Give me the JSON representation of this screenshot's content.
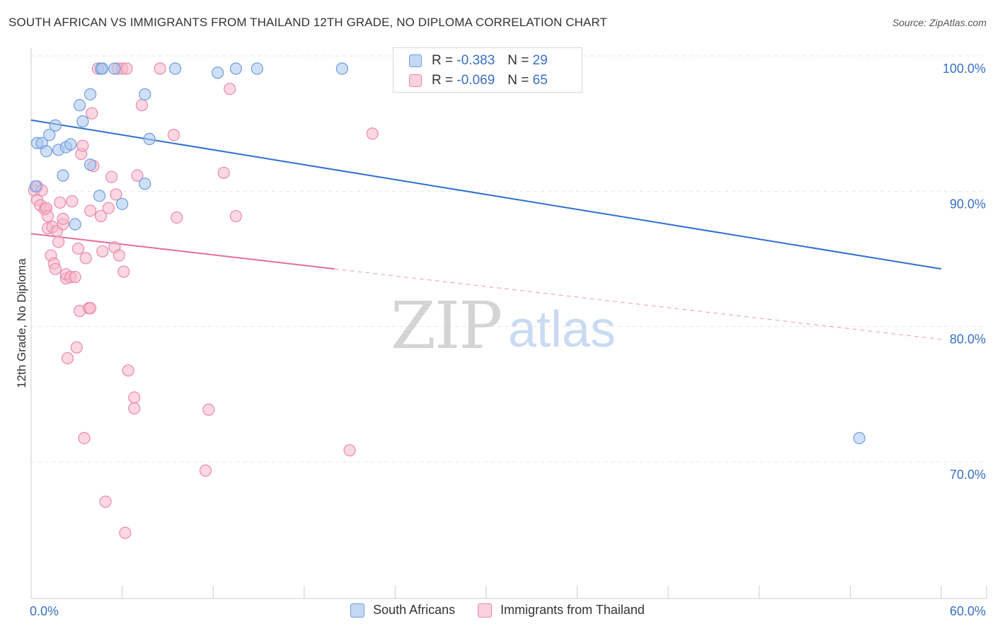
{
  "title": "SOUTH AFRICAN VS IMMIGRANTS FROM THAILAND 12TH GRADE, NO DIPLOMA CORRELATION CHART",
  "source": "Source: ZipAtlas.com",
  "watermark": {
    "zip": "ZIP",
    "atlas": "atlas"
  },
  "legend_stats": [
    {
      "r_label": "R =",
      "r_value": "-0.383",
      "n_label": "N =",
      "n_value": "29",
      "color": "#a8c6ef",
      "stroke": "#6f9be0"
    },
    {
      "r_label": "R =",
      "r_value": "-0.069",
      "n_label": "N =",
      "n_value": "65",
      "color": "#f7b7cb",
      "stroke": "#e98aa8"
    }
  ],
  "bottom_legend": [
    "South Africans",
    "Immigrants from Thailand"
  ],
  "chart_data": {
    "type": "scatter",
    "title": "SOUTH AFRICAN VS IMMIGRANTS FROM THAILAND 12TH GRADE, NO DIPLOMA CORRELATION CHART",
    "xlabel": "",
    "ylabel": "12th Grade, No Diploma",
    "xlim": [
      0,
      60
    ],
    "ylim": [
      60.5,
      101.5
    ],
    "x_tick_labels": [
      "0.0%",
      "60.0%"
    ],
    "y_ticks": [
      100,
      90,
      80,
      70
    ],
    "y_tick_labels": [
      "100.0%",
      "90.0%",
      "80.0%",
      "70.0%"
    ],
    "grid": true,
    "legend_position": "top-center",
    "series": [
      {
        "name": "South Africans",
        "color": "#6f9be0",
        "fill": "#a8c6ef",
        "line_color": "#2f6fd0",
        "trend": {
          "x": [
            0,
            60
          ],
          "y": [
            96.2,
            85.2
          ],
          "solid_to": 60
        },
        "points": [
          [
            0.3,
            91.3
          ],
          [
            0.4,
            94.5
          ],
          [
            0.7,
            94.5
          ],
          [
            1.0,
            93.9
          ],
          [
            1.2,
            95.1
          ],
          [
            1.6,
            95.8
          ],
          [
            1.8,
            94.0
          ],
          [
            2.1,
            92.1
          ],
          [
            2.3,
            94.2
          ],
          [
            2.6,
            94.4
          ],
          [
            2.9,
            88.5
          ],
          [
            3.2,
            97.3
          ],
          [
            3.4,
            96.1
          ],
          [
            3.9,
            98.1
          ],
          [
            3.9,
            92.9
          ],
          [
            4.5,
            90.6
          ],
          [
            4.6,
            100.0
          ],
          [
            4.7,
            100.0
          ],
          [
            5.5,
            100.0
          ],
          [
            6.0,
            90.0
          ],
          [
            7.5,
            98.1
          ],
          [
            7.5,
            91.5
          ],
          [
            7.8,
            94.8
          ],
          [
            9.5,
            100.0
          ],
          [
            12.3,
            99.7
          ],
          [
            13.5,
            100.0
          ],
          [
            14.9,
            100.0
          ],
          [
            20.5,
            100.0
          ],
          [
            54.6,
            72.7
          ]
        ]
      },
      {
        "name": "Immigrants from Thailand",
        "color": "#e98aa8",
        "fill": "#f7b7cb",
        "line_color": "#e4709a",
        "trend": {
          "x": [
            0,
            60
          ],
          "y": [
            87.8,
            80.0
          ],
          "solid_to": 20
        },
        "points": [
          [
            0.2,
            91.0
          ],
          [
            0.4,
            91.3
          ],
          [
            0.4,
            90.3
          ],
          [
            0.6,
            89.9
          ],
          [
            0.7,
            91.0
          ],
          [
            0.9,
            89.6
          ],
          [
            1.0,
            89.7
          ],
          [
            1.1,
            89.1
          ],
          [
            1.1,
            88.2
          ],
          [
            1.3,
            86.2
          ],
          [
            1.4,
            88.3
          ],
          [
            1.5,
            85.6
          ],
          [
            1.6,
            85.2
          ],
          [
            1.7,
            88.0
          ],
          [
            1.8,
            87.2
          ],
          [
            1.9,
            90.1
          ],
          [
            2.1,
            88.5
          ],
          [
            2.1,
            88.9
          ],
          [
            2.3,
            84.5
          ],
          [
            2.3,
            84.8
          ],
          [
            2.4,
            78.6
          ],
          [
            2.6,
            84.6
          ],
          [
            2.7,
            90.2
          ],
          [
            2.9,
            84.6
          ],
          [
            3.0,
            79.4
          ],
          [
            3.1,
            86.7
          ],
          [
            3.2,
            82.1
          ],
          [
            3.3,
            93.7
          ],
          [
            3.4,
            94.3
          ],
          [
            3.5,
            72.7
          ],
          [
            3.6,
            86.0
          ],
          [
            3.8,
            82.3
          ],
          [
            3.9,
            82.3
          ],
          [
            3.9,
            89.5
          ],
          [
            4.0,
            96.7
          ],
          [
            4.1,
            92.8
          ],
          [
            4.4,
            100.0
          ],
          [
            4.6,
            89.1
          ],
          [
            4.7,
            86.5
          ],
          [
            4.9,
            68.0
          ],
          [
            5.1,
            89.7
          ],
          [
            5.3,
            92.0
          ],
          [
            5.5,
            86.8
          ],
          [
            5.6,
            90.7
          ],
          [
            5.7,
            100.0
          ],
          [
            5.8,
            86.2
          ],
          [
            6.0,
            100.0
          ],
          [
            6.1,
            85.0
          ],
          [
            6.2,
            65.7
          ],
          [
            6.3,
            100.0
          ],
          [
            6.4,
            77.7
          ],
          [
            6.8,
            75.7
          ],
          [
            6.8,
            74.9
          ],
          [
            7.0,
            92.1
          ],
          [
            7.3,
            97.3
          ],
          [
            8.5,
            100.0
          ],
          [
            9.4,
            95.1
          ],
          [
            9.6,
            89.0
          ],
          [
            11.5,
            70.3
          ],
          [
            11.7,
            74.8
          ],
          [
            12.7,
            92.3
          ],
          [
            13.1,
            98.5
          ],
          [
            13.5,
            89.1
          ],
          [
            21.0,
            71.8
          ],
          [
            22.5,
            95.2
          ]
        ]
      }
    ]
  }
}
